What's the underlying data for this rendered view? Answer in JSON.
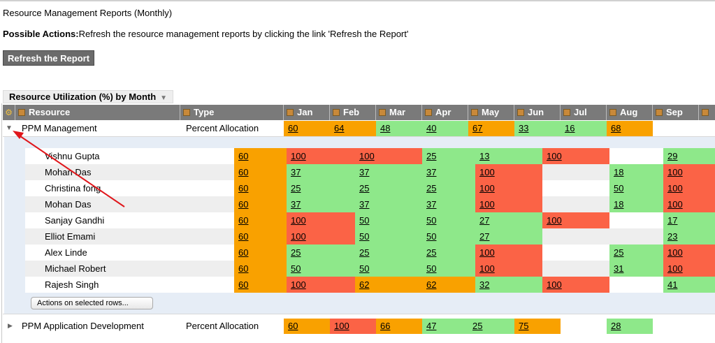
{
  "page": {
    "title": "Resource Management Reports (Monthly)",
    "actions_label": "Possible Actions:",
    "actions_text": "Refresh the resource management reports by clicking the link 'Refresh the Report'",
    "refresh_button": "Refresh the Report",
    "section_tab": "Resource Utilization (%) by Month"
  },
  "columns": {
    "resource": "Resource",
    "type": "Type",
    "months": [
      "Jan",
      "Feb",
      "Mar",
      "Apr",
      "May",
      "Jun",
      "Jul",
      "Aug",
      "Sep"
    ]
  },
  "colors": {
    "orange": "#f9a100",
    "green": "#8ee88a",
    "red": "#fb6346",
    "header": "#7a7a7a"
  },
  "groups": [
    {
      "name": "PPM Management",
      "type": "Percent Allocation",
      "expanded": true,
      "values": [
        {
          "v": "60",
          "c": "o"
        },
        {
          "v": "64",
          "c": "o"
        },
        {
          "v": "48",
          "c": "g"
        },
        {
          "v": "40",
          "c": "g"
        },
        {
          "v": "67",
          "c": "o"
        },
        {
          "v": "33",
          "c": "g"
        },
        {
          "v": "16",
          "c": "g"
        },
        {
          "v": "68",
          "c": "o"
        },
        {
          "v": "",
          "c": ""
        }
      ]
    },
    {
      "name": "PPM Application Development",
      "type": "Percent Allocation",
      "expanded": false,
      "values": [
        {
          "v": "60",
          "c": "o"
        },
        {
          "v": "100",
          "c": "r"
        },
        {
          "v": "66",
          "c": "o"
        },
        {
          "v": "47",
          "c": "g"
        },
        {
          "v": "25",
          "c": "g"
        },
        {
          "v": "75",
          "c": "o"
        },
        {
          "v": "",
          "c": ""
        },
        {
          "v": "28",
          "c": "g"
        },
        {
          "v": "",
          "c": ""
        }
      ]
    }
  ],
  "members": [
    {
      "name": "Vishnu Gupta",
      "cells": [
        {
          "v": "60",
          "c": "o"
        },
        {
          "v": "100",
          "c": "r"
        },
        {
          "v": "100",
          "c": "r"
        },
        {
          "v": "25",
          "c": "g"
        },
        {
          "v": "13",
          "c": "g"
        },
        {
          "v": "100",
          "c": "r"
        },
        {
          "v": "",
          "c": ""
        },
        {
          "v": "29",
          "c": "g"
        }
      ]
    },
    {
      "name": "Mohan Das",
      "cells": [
        {
          "v": "60",
          "c": "o"
        },
        {
          "v": "37",
          "c": "g"
        },
        {
          "v": "37",
          "c": "g"
        },
        {
          "v": "37",
          "c": "g"
        },
        {
          "v": "100",
          "c": "r"
        },
        {
          "v": "",
          "c": ""
        },
        {
          "v": "18",
          "c": "g"
        },
        {
          "v": "100",
          "c": "r"
        }
      ]
    },
    {
      "name": "Christina fong",
      "cells": [
        {
          "v": "60",
          "c": "o"
        },
        {
          "v": "25",
          "c": "g"
        },
        {
          "v": "25",
          "c": "g"
        },
        {
          "v": "25",
          "c": "g"
        },
        {
          "v": "100",
          "c": "r"
        },
        {
          "v": "",
          "c": ""
        },
        {
          "v": "50",
          "c": "g"
        },
        {
          "v": "100",
          "c": "r"
        }
      ]
    },
    {
      "name": "Mohan Das",
      "cells": [
        {
          "v": "60",
          "c": "o"
        },
        {
          "v": "37",
          "c": "g"
        },
        {
          "v": "37",
          "c": "g"
        },
        {
          "v": "37",
          "c": "g"
        },
        {
          "v": "100",
          "c": "r"
        },
        {
          "v": "",
          "c": ""
        },
        {
          "v": "18",
          "c": "g"
        },
        {
          "v": "100",
          "c": "r"
        }
      ]
    },
    {
      "name": "Sanjay Gandhi",
      "cells": [
        {
          "v": "60",
          "c": "o"
        },
        {
          "v": "100",
          "c": "r"
        },
        {
          "v": "50",
          "c": "g"
        },
        {
          "v": "50",
          "c": "g"
        },
        {
          "v": "27",
          "c": "g"
        },
        {
          "v": "100",
          "c": "r"
        },
        {
          "v": "",
          "c": ""
        },
        {
          "v": "17",
          "c": "g"
        }
      ]
    },
    {
      "name": "Elliot Emami",
      "cells": [
        {
          "v": "60",
          "c": "o"
        },
        {
          "v": "100",
          "c": "r"
        },
        {
          "v": "50",
          "c": "g"
        },
        {
          "v": "50",
          "c": "g"
        },
        {
          "v": "27",
          "c": "g"
        },
        {
          "v": "",
          "c": ""
        },
        {
          "v": "",
          "c": ""
        },
        {
          "v": "23",
          "c": "g"
        }
      ]
    },
    {
      "name": "Alex Linde",
      "cells": [
        {
          "v": "60",
          "c": "o"
        },
        {
          "v": "25",
          "c": "g"
        },
        {
          "v": "25",
          "c": "g"
        },
        {
          "v": "25",
          "c": "g"
        },
        {
          "v": "100",
          "c": "r"
        },
        {
          "v": "",
          "c": ""
        },
        {
          "v": "25",
          "c": "g"
        },
        {
          "v": "100",
          "c": "r"
        }
      ]
    },
    {
      "name": "Michael Robert",
      "cells": [
        {
          "v": "60",
          "c": "o"
        },
        {
          "v": "50",
          "c": "g"
        },
        {
          "v": "50",
          "c": "g"
        },
        {
          "v": "50",
          "c": "g"
        },
        {
          "v": "100",
          "c": "r"
        },
        {
          "v": "",
          "c": ""
        },
        {
          "v": "31",
          "c": "g"
        },
        {
          "v": "100",
          "c": "r"
        }
      ]
    },
    {
      "name": "Rajesh Singh",
      "cells": [
        {
          "v": "60",
          "c": "o"
        },
        {
          "v": "100",
          "c": "r"
        },
        {
          "v": "62",
          "c": "o"
        },
        {
          "v": "62",
          "c": "o"
        },
        {
          "v": "32",
          "c": "g"
        },
        {
          "v": "100",
          "c": "r"
        },
        {
          "v": "",
          "c": ""
        },
        {
          "v": "41",
          "c": "g"
        }
      ]
    }
  ],
  "footer": {
    "actions_select": "Actions on selected rows..."
  }
}
